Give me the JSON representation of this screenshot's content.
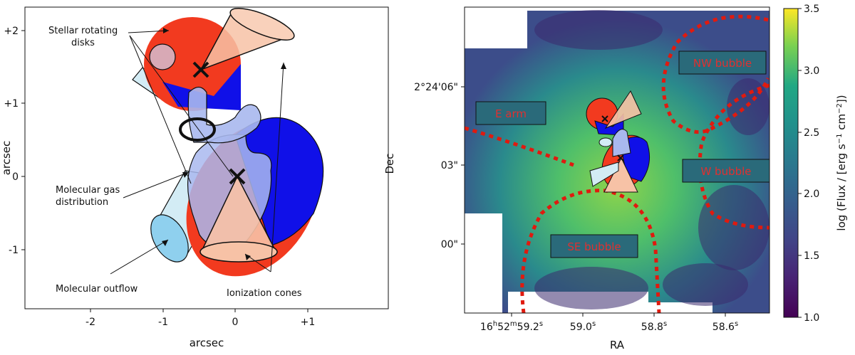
{
  "left_panel": {
    "xlabel": "arcsec",
    "ylabel": "arcsec",
    "xticks": [
      "-2",
      "-1",
      "0",
      "+1"
    ],
    "yticks": [
      "+2",
      "+1",
      "0",
      "-1"
    ],
    "annotations": {
      "stellar_line1": "Stellar rotating",
      "stellar_line2": "disks",
      "molgas_line1": "Molecular gas",
      "molgas_line2": "distribution",
      "outflow": "Molecular outflow",
      "cones": "Ionization cones"
    },
    "colors": {
      "redshift": "#f23a1f",
      "blueshift": "#1010e8",
      "gas": "#a9b8ee",
      "outflow": "#d3ecf5",
      "cone": "#f7c2a6"
    }
  },
  "right_panel": {
    "xlabel": "RA",
    "ylabel": "Dec",
    "xticks": {
      "first": {
        "hours": "16",
        "h": "h",
        "minutes": "52",
        "m": "m",
        "seconds": "59.2",
        "s": "s"
      },
      "others": [
        {
          "seconds": "59.0",
          "s": "s"
        },
        {
          "seconds": "58.8",
          "s": "s"
        },
        {
          "seconds": "58.6",
          "s": "s"
        }
      ]
    },
    "yticks": [
      "2°24'06\"",
      "03\"",
      "00\""
    ],
    "regions": {
      "nw": "NW bubble",
      "e_arm": "E arm",
      "w": "W bubble",
      "se": "SE bubble"
    },
    "map_color_low": "#3b1660",
    "map_color_high": "#8fd44a",
    "region_color": "#e01a0f"
  },
  "colorbar": {
    "label_prefix": "log (Flux / [erg s",
    "label_exp1": "−1",
    "label_mid": " cm",
    "label_exp2": "−2",
    "label_suffix": "])",
    "ticks": [
      "3.5",
      "3.0",
      "2.5",
      "2.0",
      "1.5",
      "1.0"
    ],
    "range": [
      1.0,
      3.5
    ],
    "colormap": "viridis"
  }
}
